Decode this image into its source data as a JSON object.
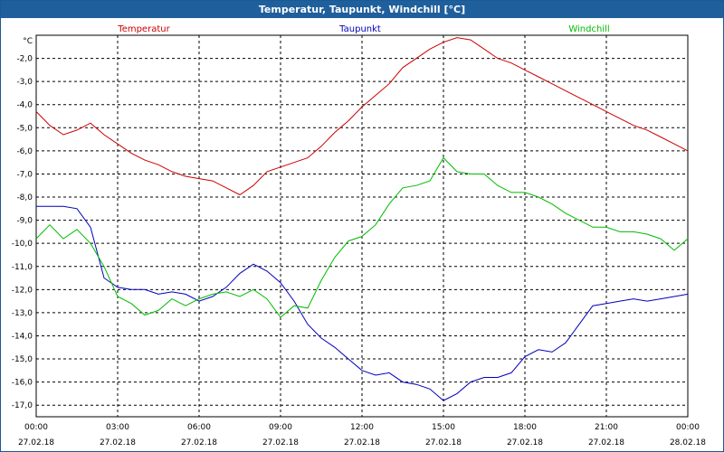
{
  "window": {
    "title": "Temperatur, Taupunkt, Windchill [°C]"
  },
  "chart_data": {
    "type": "line",
    "title": "Temperatur, Taupunkt, Windchill [°C]",
    "ylabel": "°C",
    "ylim": [
      -17.5,
      -1.0
    ],
    "y_ticks": [
      -2.0,
      -3.0,
      -4.0,
      -5.0,
      -6.0,
      -7.0,
      -8.0,
      -9.0,
      -10.0,
      -11.0,
      -12.0,
      -13.0,
      -14.0,
      -15.0,
      -16.0,
      -17.0
    ],
    "y_tick_labels": [
      "-2,0",
      "-3,0",
      "-4,0",
      "-5,0",
      "-6,0",
      "-7,0",
      "-8,0",
      "-9,0",
      "-10,0",
      "-11,0",
      "-12,0",
      "-13,0",
      "-14,0",
      "-15,0",
      "-16,0",
      "-17,0"
    ],
    "x_ticks": [
      {
        "time": "00:00",
        "date": "27.02.18"
      },
      {
        "time": "03:00",
        "date": "27.02.18"
      },
      {
        "time": "06:00",
        "date": "27.02.18"
      },
      {
        "time": "09:00",
        "date": "27.02.18"
      },
      {
        "time": "12:00",
        "date": "27.02.18"
      },
      {
        "time": "15:00",
        "date": "27.02.18"
      },
      {
        "time": "18:00",
        "date": "27.02.18"
      },
      {
        "time": "21:00",
        "date": "27.02.18"
      },
      {
        "time": "00:00",
        "date": "28.02.18"
      }
    ],
    "x_unit": "hours",
    "grid": true,
    "legend_position": "top",
    "series": [
      {
        "name": "Temperatur",
        "color": "#cc0000",
        "x": [
          0,
          0.5,
          1,
          1.5,
          2,
          2.5,
          3,
          3.5,
          4,
          4.5,
          5,
          5.5,
          6,
          6.5,
          7,
          7.5,
          8,
          8.5,
          9,
          9.5,
          10,
          10.5,
          11,
          11.5,
          12,
          12.5,
          13,
          13.5,
          14,
          14.5,
          15,
          15.5,
          16,
          16.5,
          17,
          17.5,
          18,
          18.5,
          19,
          19.5,
          20,
          20.5,
          21,
          21.5,
          22,
          22.5,
          23,
          23.5,
          24
        ],
        "values": [
          -4.3,
          -4.9,
          -5.3,
          -5.1,
          -4.8,
          -5.3,
          -5.7,
          -6.1,
          -6.4,
          -6.6,
          -6.9,
          -7.1,
          -7.2,
          -7.3,
          -7.6,
          -7.9,
          -7.5,
          -6.9,
          -6.7,
          -6.5,
          -6.3,
          -5.8,
          -5.2,
          -4.7,
          -4.1,
          -3.6,
          -3.1,
          -2.4,
          -2.0,
          -1.6,
          -1.3,
          -1.1,
          -1.2,
          -1.6,
          -2.0,
          -2.2,
          -2.5,
          -2.8,
          -3.1,
          -3.4,
          -3.7,
          -4.0,
          -4.3,
          -4.6,
          -4.9,
          -5.1,
          -5.4,
          -5.7,
          -6.0
        ]
      },
      {
        "name": "Taupunkt",
        "color": "#0000bb",
        "x": [
          0,
          0.5,
          1,
          1.5,
          2,
          2.5,
          3,
          3.5,
          4,
          4.5,
          5,
          5.5,
          6,
          6.5,
          7,
          7.5,
          8,
          8.5,
          9,
          9.5,
          10,
          10.5,
          11,
          11.5,
          12,
          12.5,
          13,
          13.5,
          14,
          14.5,
          15,
          15.5,
          16,
          16.5,
          17,
          17.5,
          18,
          18.5,
          19,
          19.5,
          20,
          20.5,
          21,
          21.5,
          22,
          22.5,
          23,
          23.5,
          24
        ],
        "values": [
          -8.4,
          -8.4,
          -8.4,
          -8.5,
          -9.3,
          -11.5,
          -11.9,
          -12.0,
          -12.0,
          -12.2,
          -12.1,
          -12.2,
          -12.5,
          -12.3,
          -11.9,
          -11.3,
          -10.9,
          -11.2,
          -11.7,
          -12.5,
          -13.5,
          -14.1,
          -14.5,
          -15.0,
          -15.5,
          -15.7,
          -15.6,
          -16.0,
          -16.1,
          -16.3,
          -16.8,
          -16.5,
          -16.0,
          -15.8,
          -15.8,
          -15.6,
          -14.9,
          -14.6,
          -14.7,
          -14.3,
          -13.5,
          -12.7,
          -12.6,
          -12.5,
          -12.4,
          -12.5,
          -12.4,
          -12.3,
          -12.2
        ]
      },
      {
        "name": "Windchill",
        "color": "#00bb00",
        "x": [
          0,
          0.5,
          1,
          1.5,
          2,
          2.5,
          3,
          3.5,
          4,
          4.5,
          5,
          5.5,
          6,
          6.5,
          7,
          7.5,
          8,
          8.5,
          9,
          9.5,
          10,
          10.5,
          11,
          11.5,
          12,
          12.5,
          13,
          13.5,
          14,
          14.5,
          15,
          15.5,
          16,
          16.5,
          17,
          17.5,
          18,
          18.5,
          19,
          19.5,
          20,
          20.5,
          21,
          21.5,
          22,
          22.5,
          23,
          23.5,
          24
        ],
        "values": [
          -9.8,
          -9.2,
          -9.8,
          -9.4,
          -10.0,
          -11.0,
          -12.3,
          -12.6,
          -13.1,
          -12.9,
          -12.4,
          -12.7,
          -12.4,
          -12.2,
          -12.1,
          -12.3,
          -12.0,
          -12.4,
          -13.2,
          -12.7,
          -12.8,
          -11.6,
          -10.6,
          -9.9,
          -9.7,
          -9.2,
          -8.3,
          -7.6,
          -7.5,
          -7.3,
          -6.3,
          -6.9,
          -7.0,
          -7.0,
          -7.5,
          -7.8,
          -7.8,
          -8.0,
          -8.3,
          -8.7,
          -9.0,
          -9.3,
          -9.3,
          -9.5,
          -9.5,
          -9.6,
          -9.8,
          -10.3,
          -9.8
        ]
      }
    ]
  }
}
